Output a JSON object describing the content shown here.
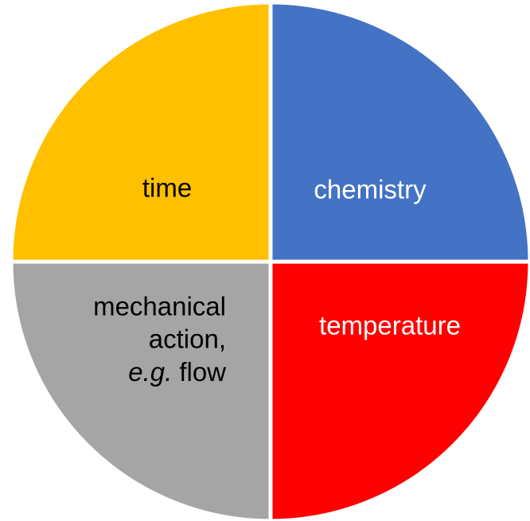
{
  "quadrants": {
    "time": {
      "label": "time"
    },
    "chemistry": {
      "label": "chemistry"
    },
    "temperature": {
      "label": "temperature"
    },
    "mechanical": {
      "lines": [
        "mechanical",
        "action,"
      ],
      "emphasis": "e.g.",
      "rest": "flow"
    }
  }
}
